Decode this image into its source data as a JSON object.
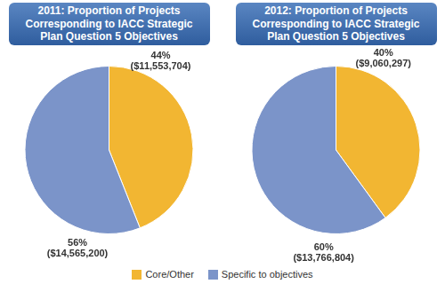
{
  "chart_data": [
    {
      "type": "pie",
      "title": "2011: Proportion of Projects Corresponding to IACC Strategic Plan Question 5 Objectives",
      "categories": [
        "Core/Other",
        "Specific to objectives"
      ],
      "values": [
        44,
        56
      ],
      "value_labels": [
        "44%",
        "56%"
      ],
      "amounts": [
        11553704,
        14565200
      ],
      "amount_labels": [
        "($11,553,704)",
        "($14,565,200)"
      ],
      "colors": [
        "#f2b632",
        "#7b94c9"
      ],
      "data_labels": true,
      "legend": "bottom"
    },
    {
      "type": "pie",
      "title": "2012: Proportion of Projects Corresponding to IACC Strategic Plan Question 5 Objectives",
      "categories": [
        "Core/Other",
        "Specific to objectives"
      ],
      "values": [
        40,
        60
      ],
      "value_labels": [
        "40%",
        "60%"
      ],
      "amounts": [
        9060297,
        13766804
      ],
      "amount_labels": [
        "($9,060,297)",
        "($13,766,804)"
      ],
      "colors": [
        "#f2b632",
        "#7b94c9"
      ],
      "data_labels": true,
      "legend": "bottom"
    }
  ]
}
